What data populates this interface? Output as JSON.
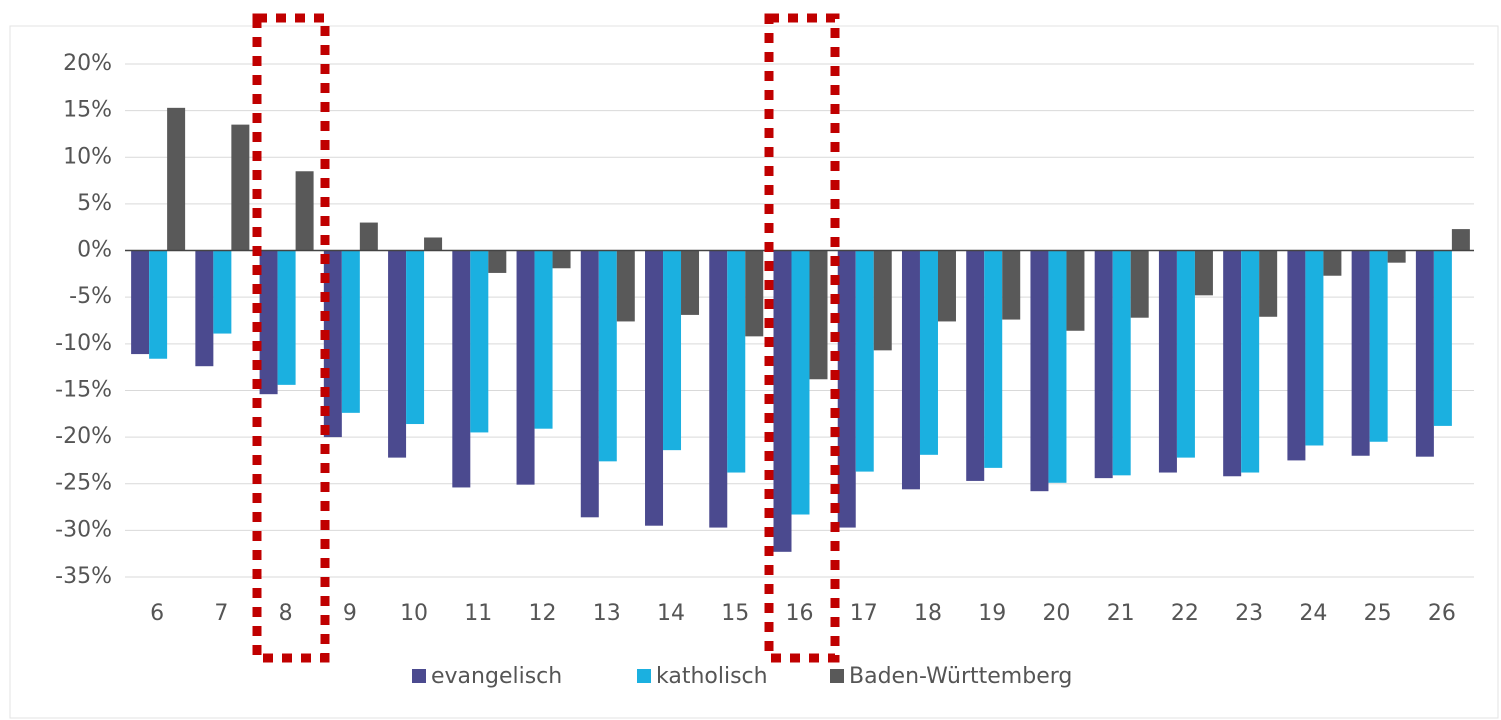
{
  "chart_data": {
    "type": "bar",
    "categories": [
      "6",
      "7",
      "8",
      "9",
      "10",
      "11",
      "12",
      "13",
      "14",
      "15",
      "16",
      "17",
      "18",
      "19",
      "20",
      "21",
      "22",
      "23",
      "24",
      "25",
      "26"
    ],
    "series": [
      {
        "name": "evangelisch",
        "color": "#4b4a8f",
        "values": [
          -11.1,
          -12.4,
          -15.4,
          -20.0,
          -22.2,
          -25.4,
          -25.1,
          -28.6,
          -29.5,
          -29.7,
          -32.3,
          -29.7,
          -25.6,
          -24.7,
          -25.8,
          -24.4,
          -23.8,
          -24.2,
          -22.5,
          -22.0,
          -22.1
        ]
      },
      {
        "name": "katholisch",
        "color": "#1bb0e0",
        "values": [
          -11.6,
          -8.9,
          -14.4,
          -17.4,
          -18.6,
          -19.5,
          -19.1,
          -22.6,
          -21.4,
          -23.8,
          -28.3,
          -23.7,
          -21.9,
          -23.3,
          -24.9,
          -24.1,
          -22.2,
          -23.8,
          -20.9,
          -20.5,
          -18.8
        ]
      },
      {
        "name": "Baden-Württemberg",
        "color": "#595959",
        "values": [
          15.3,
          13.5,
          8.5,
          3.0,
          1.4,
          -2.4,
          -1.9,
          -7.6,
          -6.9,
          -9.2,
          -13.8,
          -10.7,
          -7.6,
          -7.4,
          -8.6,
          -7.2,
          -4.8,
          -7.1,
          -2.7,
          -1.3,
          2.3
        ]
      }
    ],
    "ylim": [
      -35,
      20
    ],
    "yticks": [
      {
        "value": 20,
        "label": "20%"
      },
      {
        "value": 15,
        "label": "15%"
      },
      {
        "value": 10,
        "label": "10%"
      },
      {
        "value": 5,
        "label": "5%"
      },
      {
        "value": 0,
        "label": "0%"
      },
      {
        "value": -5,
        "label": "-5%"
      },
      {
        "value": -10,
        "label": "-10%"
      },
      {
        "value": -15,
        "label": "-15%"
      },
      {
        "value": -20,
        "label": "-20%"
      },
      {
        "value": -25,
        "label": "-25%"
      },
      {
        "value": -30,
        "label": "-30%"
      },
      {
        "value": -35,
        "label": "-35%"
      }
    ],
    "grid": true,
    "legend": "bottom"
  }
}
